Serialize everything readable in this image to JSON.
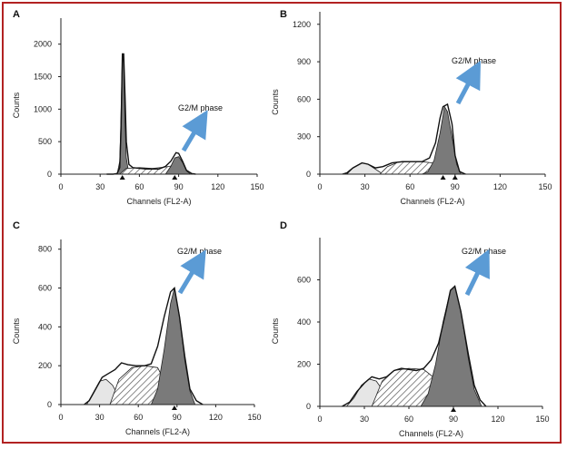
{
  "colors": {
    "frame": "#b22222",
    "arrow": "#5b9bd5",
    "peak_fill": "#7a7a7a",
    "g1_fill": "#e6e6e6"
  },
  "chart_data": [
    {
      "type": "area",
      "panel": "A",
      "xlabel": "Channels (FL2-A)",
      "ylabel": "Counts",
      "xlim": [
        0,
        150
      ],
      "ylim": [
        0,
        2400
      ],
      "xticks": [
        0,
        30,
        60,
        90,
        120,
        150
      ],
      "yticks": [
        0,
        500,
        1000,
        1500,
        2000
      ],
      "annotation": "G2/M phase",
      "markers": [
        47,
        87
      ],
      "histogram": [
        [
          35,
          0
        ],
        [
          40,
          0
        ],
        [
          43,
          10
        ],
        [
          45,
          100
        ],
        [
          46,
          700
        ],
        [
          47,
          1850
        ],
        [
          48,
          1850
        ],
        [
          49,
          1200
        ],
        [
          50,
          500
        ],
        [
          52,
          150
        ],
        [
          55,
          100
        ],
        [
          60,
          90
        ],
        [
          65,
          80
        ],
        [
          70,
          80
        ],
        [
          75,
          80
        ],
        [
          80,
          120
        ],
        [
          84,
          200
        ],
        [
          88,
          330
        ],
        [
          90,
          320
        ],
        [
          93,
          200
        ],
        [
          96,
          60
        ],
        [
          100,
          10
        ],
        [
          103,
          0
        ]
      ],
      "peaks": [
        {
          "fill": "g2",
          "curve": [
            [
              43,
              0
            ],
            [
              45,
              200
            ],
            [
              46,
              900
            ],
            [
              47,
              1850
            ],
            [
              48,
              1700
            ],
            [
              49,
              800
            ],
            [
              50,
              250
            ],
            [
              52,
              0
            ]
          ]
        },
        {
          "fill": "s",
          "curve": [
            [
              45,
              0
            ],
            [
              50,
              90
            ],
            [
              60,
              100
            ],
            [
              70,
              90
            ],
            [
              80,
              110
            ],
            [
              88,
              140
            ],
            [
              95,
              60
            ],
            [
              97,
              0
            ]
          ]
        },
        {
          "fill": "g2",
          "curve": [
            [
              80,
              0
            ],
            [
              84,
              120
            ],
            [
              87,
              250
            ],
            [
              90,
              270
            ],
            [
              93,
              180
            ],
            [
              96,
              50
            ],
            [
              99,
              0
            ]
          ]
        }
      ]
    },
    {
      "type": "area",
      "panel": "B",
      "xlabel": "Channels (FL2-A)",
      "ylabel": "Counts",
      "xlim": [
        0,
        150
      ],
      "ylim": [
        0,
        1300
      ],
      "xticks": [
        0,
        30,
        60,
        90,
        120,
        150
      ],
      "yticks": [
        0,
        300,
        600,
        900,
        1200
      ],
      "annotation": "G2/M phase",
      "markers": [
        82,
        90
      ],
      "histogram": [
        [
          15,
          0
        ],
        [
          18,
          10
        ],
        [
          22,
          50
        ],
        [
          28,
          90
        ],
        [
          32,
          80
        ],
        [
          37,
          50
        ],
        [
          42,
          60
        ],
        [
          48,
          90
        ],
        [
          55,
          100
        ],
        [
          62,
          100
        ],
        [
          68,
          100
        ],
        [
          73,
          130
        ],
        [
          77,
          250
        ],
        [
          80,
          450
        ],
        [
          82,
          540
        ],
        [
          85,
          560
        ],
        [
          88,
          400
        ],
        [
          90,
          150
        ],
        [
          93,
          20
        ],
        [
          97,
          0
        ]
      ],
      "peaks": [
        {
          "fill": "g1",
          "curve": [
            [
              18,
              0
            ],
            [
              22,
              50
            ],
            [
              28,
              90
            ],
            [
              32,
              80
            ],
            [
              37,
              40
            ],
            [
              42,
              0
            ]
          ]
        },
        {
          "fill": "s",
          "curve": [
            [
              40,
              0
            ],
            [
              45,
              60
            ],
            [
              52,
              95
            ],
            [
              60,
              100
            ],
            [
              68,
              100
            ],
            [
              75,
              90
            ],
            [
              80,
              60
            ],
            [
              83,
              0
            ]
          ]
        },
        {
          "fill": "g2",
          "curve": [
            [
              68,
              0
            ],
            [
              72,
              20
            ],
            [
              76,
              110
            ],
            [
              80,
              330
            ],
            [
              83,
              540
            ],
            [
              85,
              500
            ],
            [
              88,
              300
            ],
            [
              91,
              80
            ],
            [
              94,
              0
            ]
          ]
        }
      ]
    },
    {
      "type": "area",
      "panel": "C",
      "xlabel": "Channels (FL2-A)",
      "ylabel": "Counts",
      "xlim": [
        0,
        150
      ],
      "ylim": [
        0,
        850
      ],
      "xticks": [
        0,
        30,
        60,
        90,
        120,
        150
      ],
      "yticks": [
        0,
        200,
        400,
        600,
        800
      ],
      "annotation": "G2/M phase",
      "markers": [
        88
      ],
      "histogram": [
        [
          18,
          0
        ],
        [
          22,
          20
        ],
        [
          27,
          80
        ],
        [
          32,
          140
        ],
        [
          37,
          160
        ],
        [
          42,
          180
        ],
        [
          47,
          215
        ],
        [
          52,
          205
        ],
        [
          58,
          200
        ],
        [
          65,
          200
        ],
        [
          70,
          210
        ],
        [
          75,
          300
        ],
        [
          80,
          450
        ],
        [
          85,
          580
        ],
        [
          88,
          600
        ],
        [
          92,
          450
        ],
        [
          96,
          250
        ],
        [
          100,
          80
        ],
        [
          105,
          20
        ],
        [
          110,
          0
        ]
      ],
      "peaks": [
        {
          "fill": "g1",
          "curve": [
            [
              20,
              0
            ],
            [
              25,
              60
            ],
            [
              30,
              120
            ],
            [
              35,
              130
            ],
            [
              40,
              100
            ],
            [
              45,
              40
            ],
            [
              48,
              0
            ]
          ]
        },
        {
          "fill": "s",
          "curve": [
            [
              38,
              0
            ],
            [
              45,
              130
            ],
            [
              55,
              190
            ],
            [
              65,
              200
            ],
            [
              75,
              190
            ],
            [
              82,
              100
            ],
            [
              88,
              0
            ]
          ]
        },
        {
          "fill": "g2",
          "curve": [
            [
              70,
              0
            ],
            [
              75,
              80
            ],
            [
              80,
              280
            ],
            [
              85,
              520
            ],
            [
              88,
              600
            ],
            [
              92,
              450
            ],
            [
              96,
              230
            ],
            [
              100,
              70
            ],
            [
              104,
              0
            ]
          ]
        }
      ]
    },
    {
      "type": "area",
      "panel": "D",
      "xlabel": "Channels (FL2-A)",
      "ylabel": "Counts",
      "xlim": [
        0,
        150
      ],
      "ylim": [
        0,
        800
      ],
      "xticks": [
        0,
        30,
        60,
        90,
        120,
        150
      ],
      "yticks": [
        0,
        200,
        400,
        600
      ],
      "annotation": "G2/M phase",
      "markers": [
        90
      ],
      "histogram": [
        [
          15,
          0
        ],
        [
          20,
          20
        ],
        [
          25,
          70
        ],
        [
          30,
          110
        ],
        [
          35,
          140
        ],
        [
          40,
          130
        ],
        [
          45,
          140
        ],
        [
          50,
          170
        ],
        [
          55,
          180
        ],
        [
          60,
          175
        ],
        [
          65,
          170
        ],
        [
          70,
          180
        ],
        [
          75,
          220
        ],
        [
          80,
          300
        ],
        [
          85,
          450
        ],
        [
          88,
          550
        ],
        [
          91,
          570
        ],
        [
          95,
          450
        ],
        [
          100,
          250
        ],
        [
          104,
          100
        ],
        [
          108,
          30
        ],
        [
          112,
          0
        ]
      ],
      "peaks": [
        {
          "fill": "g1",
          "curve": [
            [
              18,
              0
            ],
            [
              23,
              40
            ],
            [
              28,
              100
            ],
            [
              33,
              130
            ],
            [
              38,
              120
            ],
            [
              43,
              70
            ],
            [
              48,
              20
            ],
            [
              52,
              0
            ]
          ]
        },
        {
          "fill": "s",
          "curve": [
            [
              35,
              0
            ],
            [
              42,
              120
            ],
            [
              50,
              170
            ],
            [
              60,
              180
            ],
            [
              70,
              175
            ],
            [
              78,
              130
            ],
            [
              84,
              40
            ],
            [
              88,
              0
            ]
          ]
        },
        {
          "fill": "g2",
          "curve": [
            [
              68,
              0
            ],
            [
              73,
              60
            ],
            [
              78,
              200
            ],
            [
              83,
              400
            ],
            [
              88,
              550
            ],
            [
              91,
              570
            ],
            [
              95,
              450
            ],
            [
              100,
              230
            ],
            [
              104,
              80
            ],
            [
              109,
              0
            ]
          ]
        }
      ]
    }
  ]
}
